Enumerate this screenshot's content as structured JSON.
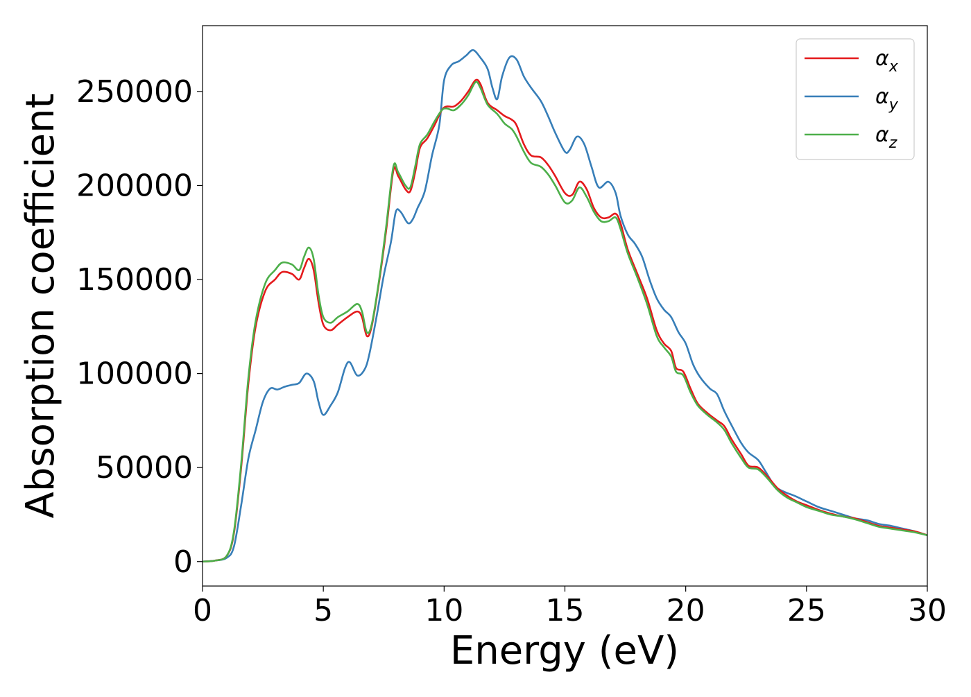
{
  "chart_data": {
    "type": "line",
    "title": "",
    "xlabel": "Energy (eV)",
    "ylabel": "Absorption coefficient",
    "xlim": [
      0,
      30
    ],
    "ylim": [
      -13000,
      285000
    ],
    "xticks": [
      0,
      5,
      10,
      15,
      20,
      25,
      30
    ],
    "xtick_labels": [
      "0",
      "5",
      "10",
      "15",
      "20",
      "25",
      "30"
    ],
    "yticks": [
      0,
      50000,
      100000,
      150000,
      200000,
      250000
    ],
    "ytick_labels": [
      "0",
      "50000",
      "100000",
      "150000",
      "200000",
      "250000"
    ],
    "grid": false,
    "legend_position": "top-right",
    "series": [
      {
        "name": "αx",
        "base": "α",
        "sub": "x",
        "color": "#e41a1c",
        "points": [
          [
            0,
            0
          ],
          [
            0.5,
            500
          ],
          [
            1.0,
            3000
          ],
          [
            1.3,
            15000
          ],
          [
            1.6,
            50000
          ],
          [
            1.9,
            95000
          ],
          [
            2.2,
            125000
          ],
          [
            2.6,
            144000
          ],
          [
            3.0,
            150000
          ],
          [
            3.3,
            154000
          ],
          [
            3.7,
            153000
          ],
          [
            4.0,
            150000
          ],
          [
            4.2,
            156000
          ],
          [
            4.4,
            161000
          ],
          [
            4.6,
            155000
          ],
          [
            4.8,
            138000
          ],
          [
            5.0,
            126000
          ],
          [
            5.3,
            123000
          ],
          [
            5.6,
            126000
          ],
          [
            6.0,
            130000
          ],
          [
            6.4,
            133000
          ],
          [
            6.6,
            130000
          ],
          [
            6.8,
            120000
          ],
          [
            7.0,
            125000
          ],
          [
            7.3,
            148000
          ],
          [
            7.6,
            176000
          ],
          [
            7.9,
            208000
          ],
          [
            8.1,
            205000
          ],
          [
            8.4,
            198000
          ],
          [
            8.6,
            197000
          ],
          [
            8.8,
            207000
          ],
          [
            9.0,
            220000
          ],
          [
            9.3,
            225000
          ],
          [
            9.6,
            232000
          ],
          [
            9.9,
            240000
          ],
          [
            10.1,
            242000
          ],
          [
            10.4,
            242000
          ],
          [
            10.7,
            245000
          ],
          [
            11.0,
            250000
          ],
          [
            11.3,
            256000
          ],
          [
            11.5,
            254000
          ],
          [
            11.8,
            244000
          ],
          [
            12.2,
            240000
          ],
          [
            12.5,
            237000
          ],
          [
            12.8,
            235000
          ],
          [
            13.0,
            232000
          ],
          [
            13.3,
            222000
          ],
          [
            13.6,
            216000
          ],
          [
            14.0,
            215000
          ],
          [
            14.3,
            211000
          ],
          [
            14.6,
            205000
          ],
          [
            15.0,
            196000
          ],
          [
            15.3,
            195000
          ],
          [
            15.6,
            202000
          ],
          [
            15.9,
            198000
          ],
          [
            16.2,
            188000
          ],
          [
            16.5,
            183000
          ],
          [
            16.8,
            183000
          ],
          [
            17.1,
            185000
          ],
          [
            17.3,
            180000
          ],
          [
            17.6,
            166000
          ],
          [
            18.0,
            153000
          ],
          [
            18.4,
            140000
          ],
          [
            18.8,
            123000
          ],
          [
            19.1,
            116000
          ],
          [
            19.4,
            112000
          ],
          [
            19.6,
            103000
          ],
          [
            19.9,
            101000
          ],
          [
            20.2,
            92000
          ],
          [
            20.5,
            84000
          ],
          [
            20.9,
            79000
          ],
          [
            21.3,
            75000
          ],
          [
            21.6,
            72000
          ],
          [
            21.9,
            65000
          ],
          [
            22.3,
            57000
          ],
          [
            22.6,
            51000
          ],
          [
            23.0,
            50000
          ],
          [
            23.4,
            45000
          ],
          [
            23.8,
            39000
          ],
          [
            24.2,
            35000
          ],
          [
            24.6,
            32000
          ],
          [
            25.0,
            30000
          ],
          [
            25.5,
            27500
          ],
          [
            26.0,
            25500
          ],
          [
            26.5,
            24000
          ],
          [
            27.0,
            23000
          ],
          [
            27.5,
            21000
          ],
          [
            28.0,
            19000
          ],
          [
            28.5,
            18000
          ],
          [
            29.0,
            17000
          ],
          [
            29.5,
            16000
          ],
          [
            30.0,
            14000
          ]
        ]
      },
      {
        "name": "αy",
        "base": "α",
        "sub": "y",
        "color": "#377eb8",
        "points": [
          [
            0,
            0
          ],
          [
            0.5,
            500
          ],
          [
            1.0,
            2000
          ],
          [
            1.3,
            8000
          ],
          [
            1.6,
            30000
          ],
          [
            1.9,
            55000
          ],
          [
            2.2,
            70000
          ],
          [
            2.5,
            85000
          ],
          [
            2.8,
            92000
          ],
          [
            3.1,
            91500
          ],
          [
            3.4,
            93000
          ],
          [
            3.7,
            94000
          ],
          [
            4.0,
            95000
          ],
          [
            4.3,
            100000
          ],
          [
            4.6,
            96000
          ],
          [
            4.8,
            85000
          ],
          [
            5.0,
            78000
          ],
          [
            5.3,
            83000
          ],
          [
            5.6,
            90000
          ],
          [
            5.9,
            103000
          ],
          [
            6.1,
            106000
          ],
          [
            6.4,
            99000
          ],
          [
            6.7,
            102000
          ],
          [
            6.9,
            110000
          ],
          [
            7.2,
            130000
          ],
          [
            7.5,
            152000
          ],
          [
            7.8,
            170000
          ],
          [
            8.0,
            186000
          ],
          [
            8.2,
            186000
          ],
          [
            8.5,
            180000
          ],
          [
            8.7,
            182000
          ],
          [
            8.9,
            188000
          ],
          [
            9.2,
            197000
          ],
          [
            9.5,
            216000
          ],
          [
            9.8,
            232000
          ],
          [
            10.0,
            256000
          ],
          [
            10.3,
            264000
          ],
          [
            10.6,
            266000
          ],
          [
            10.9,
            269000
          ],
          [
            11.2,
            272000
          ],
          [
            11.5,
            268000
          ],
          [
            11.8,
            262000
          ],
          [
            12.0,
            252000
          ],
          [
            12.2,
            246000
          ],
          [
            12.4,
            258000
          ],
          [
            12.7,
            268000
          ],
          [
            13.0,
            267000
          ],
          [
            13.3,
            258000
          ],
          [
            13.6,
            252000
          ],
          [
            14.0,
            245000
          ],
          [
            14.3,
            237000
          ],
          [
            14.6,
            228000
          ],
          [
            15.0,
            218000
          ],
          [
            15.2,
            219000
          ],
          [
            15.5,
            226000
          ],
          [
            15.8,
            222000
          ],
          [
            16.1,
            210000
          ],
          [
            16.4,
            199000
          ],
          [
            16.8,
            202000
          ],
          [
            17.1,
            196000
          ],
          [
            17.3,
            184000
          ],
          [
            17.6,
            174000
          ],
          [
            17.9,
            169000
          ],
          [
            18.2,
            162000
          ],
          [
            18.5,
            150000
          ],
          [
            18.8,
            140000
          ],
          [
            19.1,
            134000
          ],
          [
            19.4,
            130000
          ],
          [
            19.7,
            122000
          ],
          [
            20.0,
            116000
          ],
          [
            20.3,
            105000
          ],
          [
            20.6,
            98000
          ],
          [
            21.0,
            92000
          ],
          [
            21.3,
            89000
          ],
          [
            21.6,
            80000
          ],
          [
            22.0,
            70000
          ],
          [
            22.3,
            63000
          ],
          [
            22.6,
            58000
          ],
          [
            23.0,
            54000
          ],
          [
            23.3,
            48000
          ],
          [
            23.7,
            40000
          ],
          [
            24.1,
            37000
          ],
          [
            24.5,
            35000
          ],
          [
            25.0,
            32000
          ],
          [
            25.5,
            29000
          ],
          [
            26.0,
            27000
          ],
          [
            26.5,
            25000
          ],
          [
            27.0,
            23000
          ],
          [
            27.5,
            22000
          ],
          [
            28.0,
            20000
          ],
          [
            28.5,
            19000
          ],
          [
            29.0,
            17500
          ],
          [
            29.5,
            16000
          ],
          [
            30.0,
            14000
          ]
        ]
      },
      {
        "name": "αz",
        "base": "α",
        "sub": "z",
        "color": "#4daf4a",
        "points": [
          [
            0,
            0
          ],
          [
            0.5,
            500
          ],
          [
            1.0,
            3000
          ],
          [
            1.3,
            16000
          ],
          [
            1.6,
            52000
          ],
          [
            1.9,
            98000
          ],
          [
            2.2,
            128000
          ],
          [
            2.6,
            148000
          ],
          [
            3.0,
            155000
          ],
          [
            3.3,
            159000
          ],
          [
            3.7,
            158000
          ],
          [
            4.0,
            155000
          ],
          [
            4.2,
            162000
          ],
          [
            4.4,
            167000
          ],
          [
            4.6,
            161000
          ],
          [
            4.8,
            142000
          ],
          [
            5.0,
            130000
          ],
          [
            5.3,
            127000
          ],
          [
            5.6,
            130000
          ],
          [
            6.0,
            133000
          ],
          [
            6.4,
            137000
          ],
          [
            6.6,
            133000
          ],
          [
            6.8,
            122000
          ],
          [
            7.0,
            126000
          ],
          [
            7.3,
            149000
          ],
          [
            7.6,
            178000
          ],
          [
            7.9,
            210000
          ],
          [
            8.1,
            207000
          ],
          [
            8.4,
            200000
          ],
          [
            8.6,
            199000
          ],
          [
            8.8,
            210000
          ],
          [
            9.0,
            222000
          ],
          [
            9.3,
            227000
          ],
          [
            9.6,
            234000
          ],
          [
            9.9,
            240000
          ],
          [
            10.1,
            241000
          ],
          [
            10.4,
            240000
          ],
          [
            10.7,
            243000
          ],
          [
            11.0,
            248000
          ],
          [
            11.3,
            255000
          ],
          [
            11.5,
            252000
          ],
          [
            11.8,
            243000
          ],
          [
            12.2,
            238000
          ],
          [
            12.5,
            233000
          ],
          [
            12.8,
            230000
          ],
          [
            13.0,
            226000
          ],
          [
            13.3,
            218000
          ],
          [
            13.6,
            212000
          ],
          [
            14.0,
            210000
          ],
          [
            14.3,
            206000
          ],
          [
            14.6,
            200000
          ],
          [
            15.0,
            191000
          ],
          [
            15.3,
            192000
          ],
          [
            15.6,
            199000
          ],
          [
            15.9,
            194000
          ],
          [
            16.2,
            186000
          ],
          [
            16.5,
            181000
          ],
          [
            16.8,
            181000
          ],
          [
            17.1,
            183000
          ],
          [
            17.3,
            177000
          ],
          [
            17.6,
            164000
          ],
          [
            18.0,
            151000
          ],
          [
            18.4,
            137000
          ],
          [
            18.8,
            120000
          ],
          [
            19.1,
            114000
          ],
          [
            19.4,
            109000
          ],
          [
            19.6,
            101000
          ],
          [
            19.9,
            99000
          ],
          [
            20.2,
            90000
          ],
          [
            20.5,
            83000
          ],
          [
            20.9,
            78000
          ],
          [
            21.3,
            74000
          ],
          [
            21.6,
            70000
          ],
          [
            21.9,
            63000
          ],
          [
            22.3,
            55000
          ],
          [
            22.6,
            50000
          ],
          [
            23.0,
            49000
          ],
          [
            23.4,
            44000
          ],
          [
            23.8,
            38000
          ],
          [
            24.2,
            34000
          ],
          [
            24.6,
            31500
          ],
          [
            25.0,
            29000
          ],
          [
            25.5,
            27000
          ],
          [
            26.0,
            25000
          ],
          [
            26.5,
            24000
          ],
          [
            27.0,
            22500
          ],
          [
            27.5,
            20500
          ],
          [
            28.0,
            18500
          ],
          [
            28.5,
            17500
          ],
          [
            29.0,
            16500
          ],
          [
            29.5,
            15500
          ],
          [
            30.0,
            14000
          ]
        ]
      }
    ]
  }
}
